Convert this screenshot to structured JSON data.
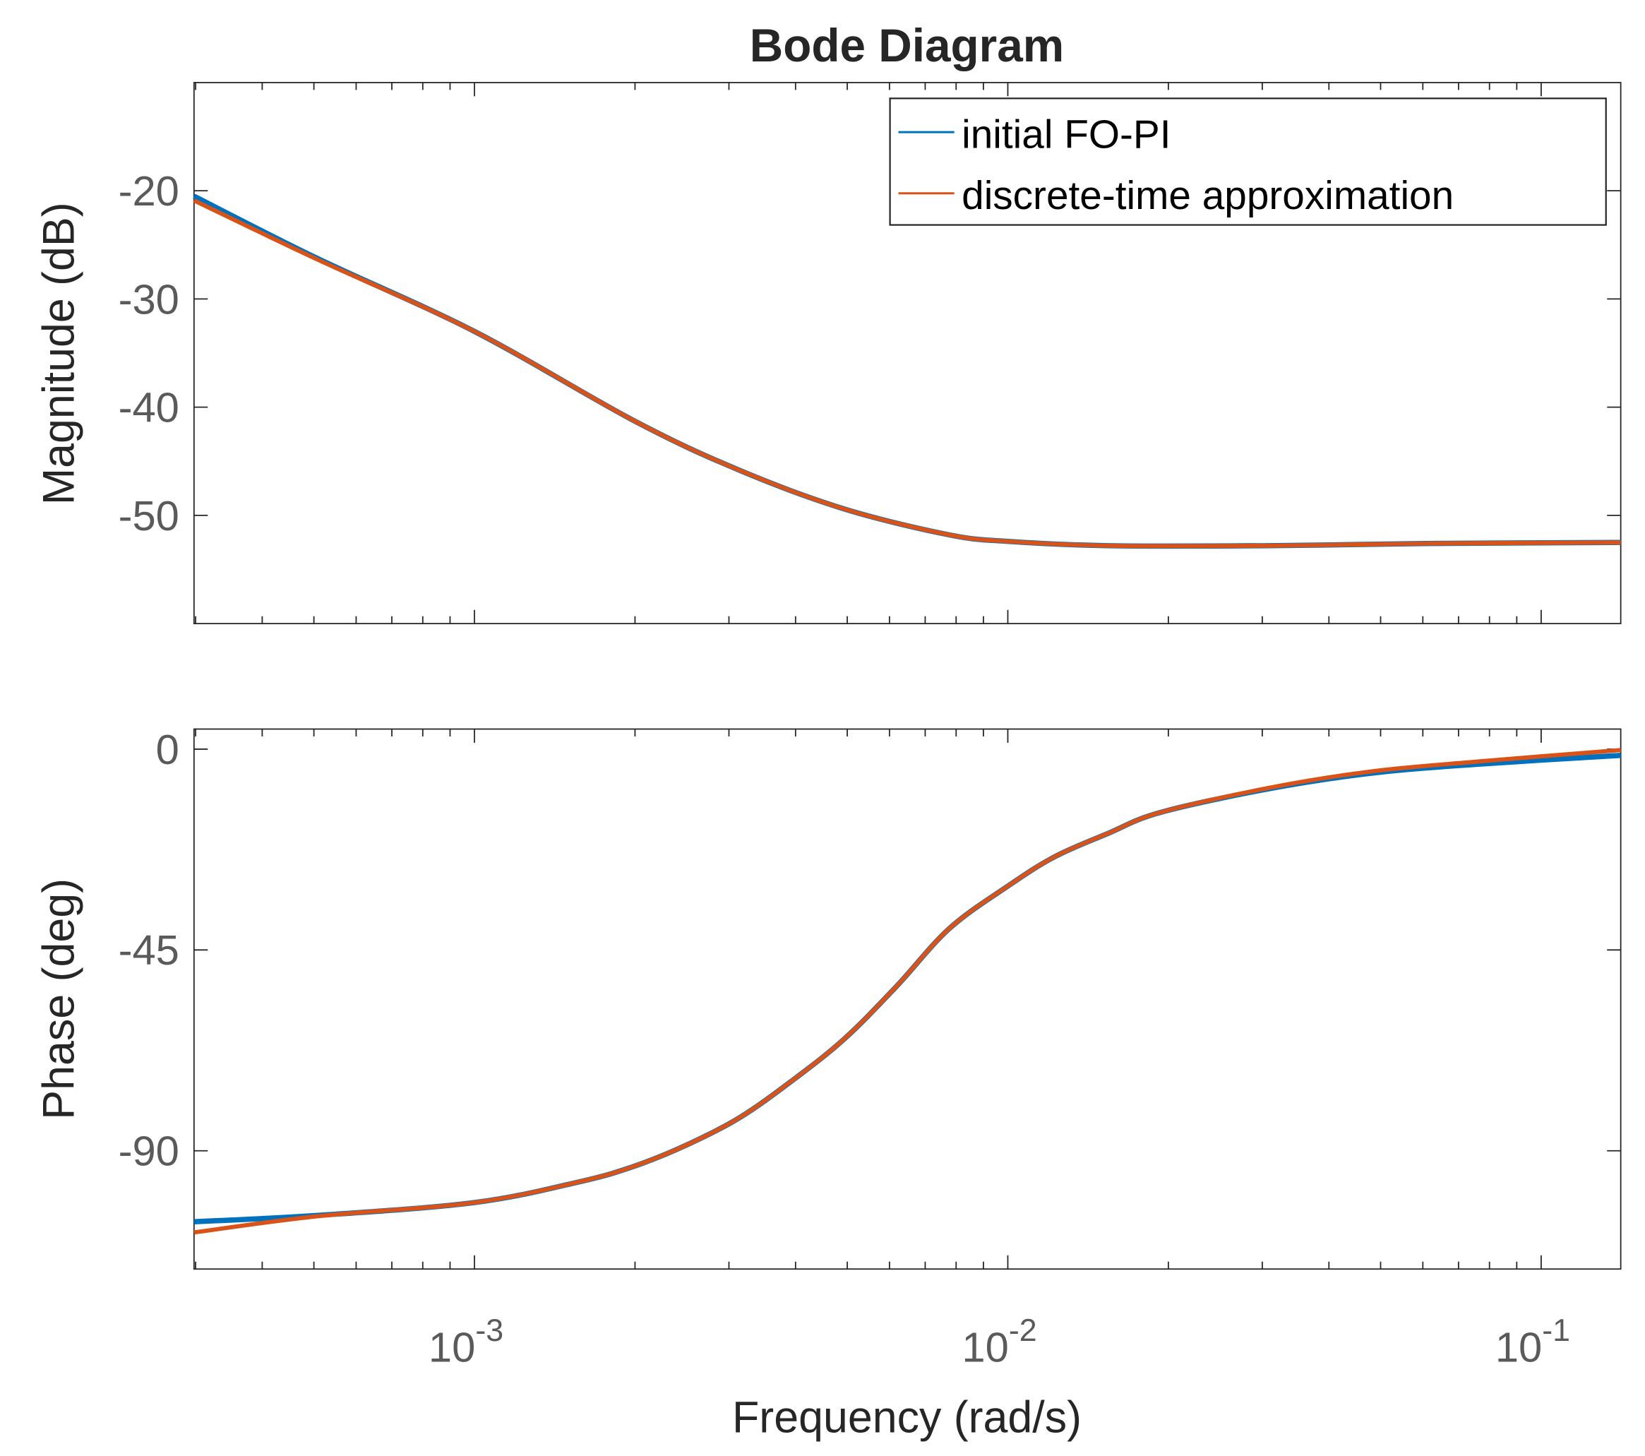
{
  "chart_data": [
    {
      "type": "line",
      "title": "Bode Diagram",
      "xlabel": "Frequency (rad/s)",
      "ylabel": "Magnitude (dB)",
      "xscale": "log",
      "xlim": [
        0.000298,
        0.141
      ],
      "ylim": [
        -60,
        -10
      ],
      "yticks": [
        -20,
        -30,
        -40,
        -50
      ],
      "xticks": [
        0.001,
        0.01,
        0.1
      ],
      "xtick_labels": [
        {
          "base": "10",
          "exp": "-3"
        },
        {
          "base": "10",
          "exp": "-2"
        },
        {
          "base": "10",
          "exp": "-1"
        }
      ],
      "grid": false,
      "legend": "top-right",
      "x": [
        0.000298,
        0.000505,
        0.001,
        0.002,
        0.00313,
        0.00493,
        0.00777,
        0.01,
        0.0154,
        0.0308,
        0.0604,
        0.141
      ],
      "series": [
        {
          "name": "initial FO-PI",
          "color": "#0072BD",
          "values": [
            -20.5,
            -26.2,
            -33.0,
            -41.3,
            -45.8,
            -49.4,
            -51.8,
            -52.4,
            -52.8,
            -52.8,
            -52.6,
            -52.5
          ]
        },
        {
          "name": "discrete-time approximation",
          "color": "#D95319",
          "values": [
            -20.9,
            -26.3,
            -33.0,
            -41.3,
            -45.8,
            -49.4,
            -51.8,
            -52.4,
            -52.8,
            -52.8,
            -52.6,
            -52.5
          ]
        }
      ]
    },
    {
      "type": "line",
      "xlabel": "Frequency (rad/s)",
      "ylabel": "Phase (deg)",
      "xscale": "log",
      "xlim": [
        0.000298,
        0.141
      ],
      "ylim": [
        -116.5,
        4.5
      ],
      "yticks": [
        0,
        -45,
        -90
      ],
      "grid": false,
      "x": [
        0.000298,
        0.000505,
        0.001,
        0.00158,
        0.002,
        0.0025,
        0.00313,
        0.00392,
        0.00493,
        0.00618,
        0.00777,
        0.01,
        0.01225,
        0.0154,
        0.0193,
        0.0308,
        0.048,
        0.0757,
        0.141
      ],
      "series": [
        {
          "name": "initial FO-PI",
          "color": "#0072BD",
          "values": [
            -105.9,
            -104.5,
            -101.6,
            -96.9,
            -93.4,
            -88.7,
            -82.7,
            -74.5,
            -65.0,
            -53.2,
            -40.2,
            -30.7,
            -24.1,
            -18.9,
            -14.2,
            -8.9,
            -5.4,
            -3.4,
            -1.4
          ]
        },
        {
          "name": "discrete-time approximation",
          "color": "#D95319",
          "values": [
            -108.3,
            -104.7,
            -101.6,
            -96.9,
            -93.4,
            -88.7,
            -82.7,
            -74.5,
            -65.0,
            -53.2,
            -40.2,
            -30.7,
            -24.1,
            -18.9,
            -14.2,
            -8.7,
            -5.0,
            -2.8,
            -0.2
          ]
        }
      ]
    }
  ]
}
